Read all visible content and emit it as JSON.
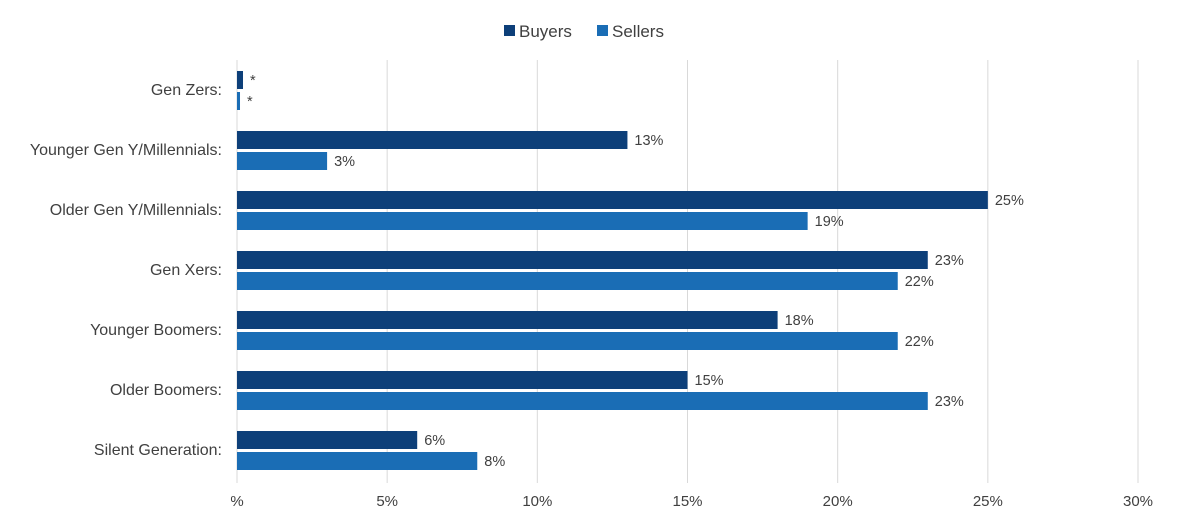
{
  "chart_data": {
    "type": "bar",
    "orientation": "horizontal",
    "title": "",
    "xlabel": "",
    "ylabel": "",
    "xlim": [
      0,
      30
    ],
    "x_ticks": [
      0,
      5,
      10,
      15,
      20,
      25,
      30
    ],
    "x_tick_labels": [
      "%",
      "5%",
      "10%",
      "15%",
      "20%",
      "25%",
      "30%"
    ],
    "grid": true,
    "legend_position": "top-center",
    "categories": [
      "Gen Zers:",
      "Younger Gen Y/Millennials:",
      "Older Gen Y/Millennials:",
      "Gen Xers:",
      "Younger Boomers:",
      "Older Boomers:",
      "Silent Generation:"
    ],
    "series": [
      {
        "name": "Buyers",
        "color": "#0d3f79",
        "values": [
          0.2,
          13,
          25,
          23,
          18,
          15,
          6
        ],
        "labels": [
          "*",
          "13%",
          "25%",
          "23%",
          "18%",
          "15%",
          "6%"
        ]
      },
      {
        "name": "Sellers",
        "color": "#1a6db5",
        "values": [
          0.1,
          3,
          19,
          22,
          22,
          23,
          8
        ],
        "labels": [
          "*",
          "3%",
          "19%",
          "22%",
          "22%",
          "23%",
          "8%"
        ]
      }
    ]
  }
}
